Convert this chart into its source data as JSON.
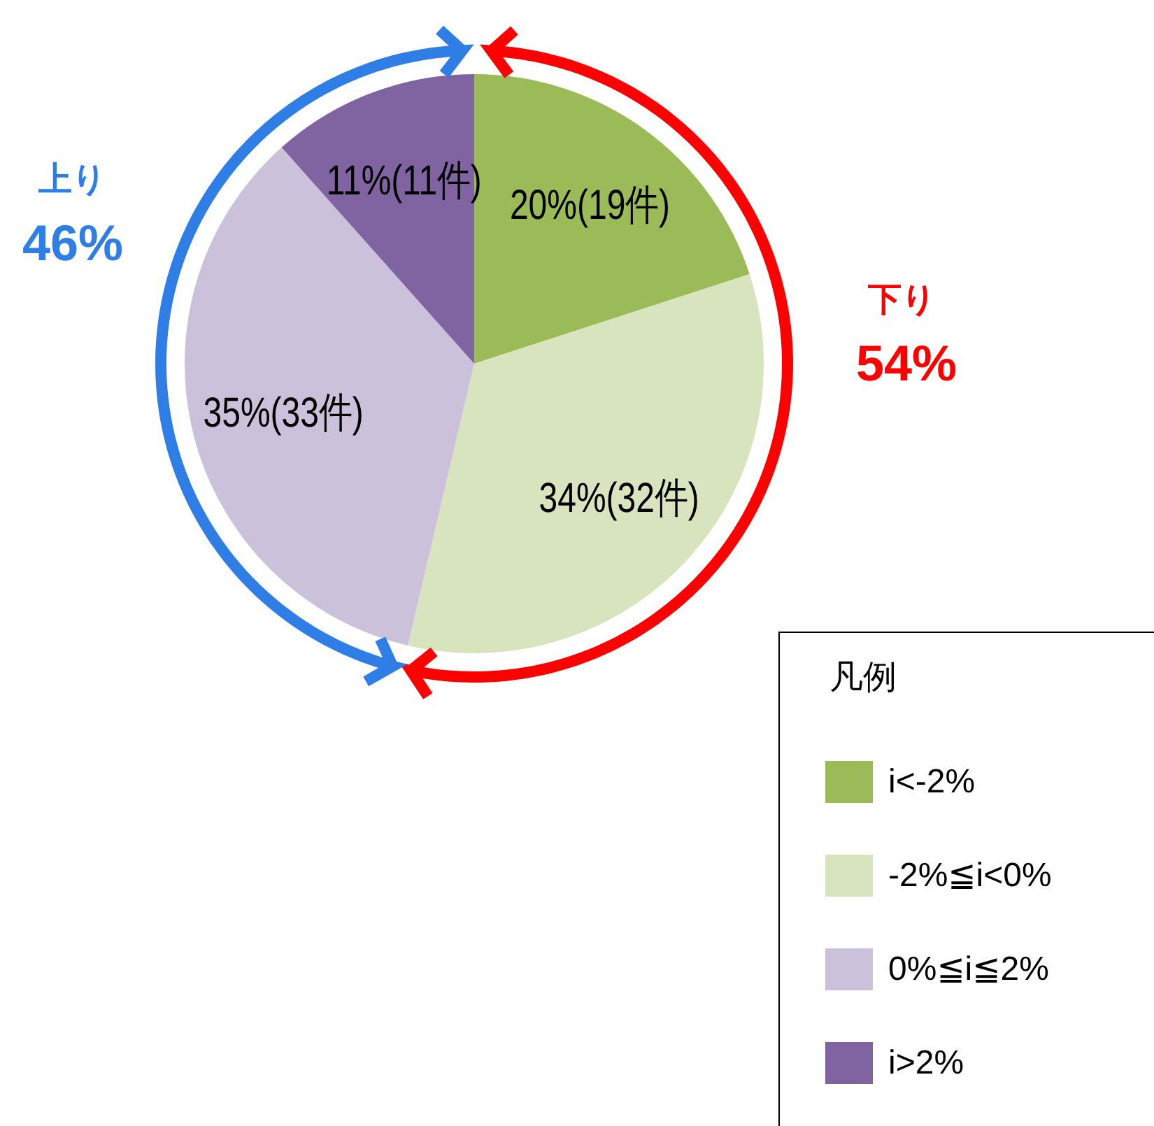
{
  "chart_data": {
    "type": "pie",
    "categories": [
      "i<-2%",
      "-2%≦i<0%",
      "0%≦i≦2%",
      "i>2%"
    ],
    "values": [
      19,
      32,
      33,
      11
    ],
    "value_labels": [
      "20%(19件)",
      "34%(32件)",
      "35%(33件)",
      "11%(11件)"
    ],
    "colors": [
      "#9bbb59",
      "#d7e4bd",
      "#ccc1da",
      "#8064a2"
    ],
    "legend": "bottom right",
    "legend_title": "凡例",
    "annotations": [
      "上り",
      "46%",
      "下り",
      "54%"
    ]
  }
}
